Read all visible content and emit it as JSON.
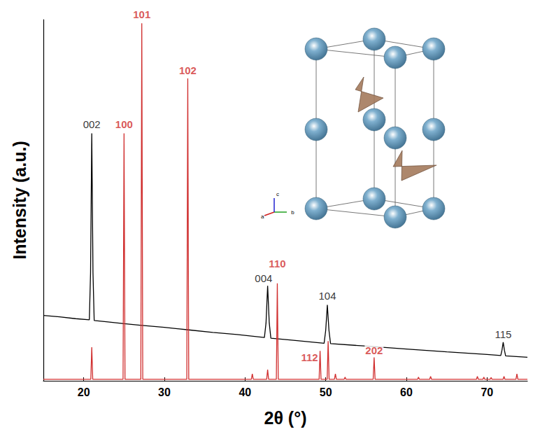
{
  "chart_data": {
    "type": "line",
    "x_label": "2θ (°)",
    "y_label": "Intensity (a.u.)",
    "xlim": [
      15,
      75
    ],
    "xticks": [
      20,
      30,
      40,
      50,
      60,
      70
    ],
    "ylim": [
      0,
      100
    ],
    "tick_labels": "x",
    "grid": false,
    "series": [
      {
        "color": "#000000",
        "x": [
          15,
          17,
          19,
          20.7,
          20.85,
          21.0,
          21.15,
          21.3,
          23,
          25,
          27,
          30,
          33,
          36,
          39,
          42.4,
          42.6,
          42.8,
          43.0,
          43.2,
          46,
          49.8,
          50.0,
          50.2,
          50.4,
          50.6,
          55,
          60,
          65,
          70,
          71.7,
          71.85,
          72.0,
          72.15,
          72.3,
          75
        ],
        "values": [
          18.1,
          17.7,
          17.2,
          16.9,
          30,
          68.5,
          30,
          16.7,
          16.3,
          15.8,
          15.4,
          14.8,
          14.1,
          13.4,
          12.8,
          12.0,
          16,
          26.3,
          16,
          11.8,
          11.2,
          10.4,
          14,
          21,
          14,
          10.3,
          9.6,
          8.8,
          8.0,
          7.3,
          7.0,
          8.5,
          10.7,
          8.5,
          6.9,
          6.5
        ]
      },
      {
        "color": "#d02e2e",
        "x": [
          15,
          20.88,
          21.0,
          21.12,
          24.88,
          25.0,
          25.12,
          27.08,
          27.2,
          27.32,
          32.78,
          32.9,
          33.02,
          40.78,
          40.9,
          41.02,
          42.68,
          42.8,
          42.92,
          43.88,
          44.0,
          44.12,
          49.18,
          49.3,
          49.42,
          50.18,
          50.3,
          50.42,
          51.08,
          51.2,
          51.32,
          52.28,
          52.4,
          52.52,
          55.88,
          56.0,
          56.12,
          61.38,
          61.5,
          61.62,
          62.88,
          63.0,
          63.12,
          68.68,
          68.8,
          68.92,
          69.48,
          69.6,
          69.72,
          70.38,
          70.5,
          70.62,
          71.98,
          72.1,
          72.22,
          73.58,
          73.7,
          73.82,
          75
        ],
        "values": [
          0.4,
          0.4,
          9.3,
          0.4,
          0.4,
          68.5,
          0.4,
          0.4,
          99,
          0.4,
          0.4,
          83.7,
          0.4,
          0.4,
          1.9,
          0.4,
          0.4,
          3.1,
          0.4,
          0.4,
          27,
          0.4,
          0.4,
          8.3,
          0.4,
          0.4,
          11,
          0.4,
          0.4,
          1.9,
          0.4,
          0.4,
          1.0,
          0.4,
          0.4,
          6.5,
          0.4,
          0.4,
          1.0,
          0.4,
          0.4,
          1.2,
          0.4,
          0.4,
          1.2,
          0.4,
          0.4,
          1.0,
          0.4,
          0.4,
          0.9,
          0.4,
          0.4,
          1.2,
          0.4,
          0.4,
          1.9,
          0.4,
          0.4
        ]
      }
    ],
    "annotations": [
      {
        "text": "002",
        "x": 21.0,
        "y": 69.5,
        "color": "#000000"
      },
      {
        "text": "004",
        "x": 42.3,
        "y": 27.0,
        "color": "#000000"
      },
      {
        "text": "104",
        "x": 50.2,
        "y": 22.0,
        "color": "#000000"
      },
      {
        "text": "115",
        "x": 72.0,
        "y": 11.5,
        "color": "#000000"
      },
      {
        "text": "100",
        "x": 25.0,
        "y": 69.5,
        "color": "#d02e2e"
      },
      {
        "text": "101",
        "x": 27.2,
        "y": 100,
        "color": "#d02e2e"
      },
      {
        "text": "102",
        "x": 32.9,
        "y": 84.5,
        "color": "#d02e2e"
      },
      {
        "text": "110",
        "x": 44.0,
        "y": 31.0,
        "color": "#d02e2e"
      },
      {
        "text": "112",
        "x": 48.0,
        "y": 5.0,
        "color": "#d02e2e"
      },
      {
        "text": "202",
        "x": 56.0,
        "y": 7.0,
        "color": "#d02e2e"
      }
    ],
    "inset_axis_labels": [
      "a",
      "b",
      "c"
    ]
  }
}
